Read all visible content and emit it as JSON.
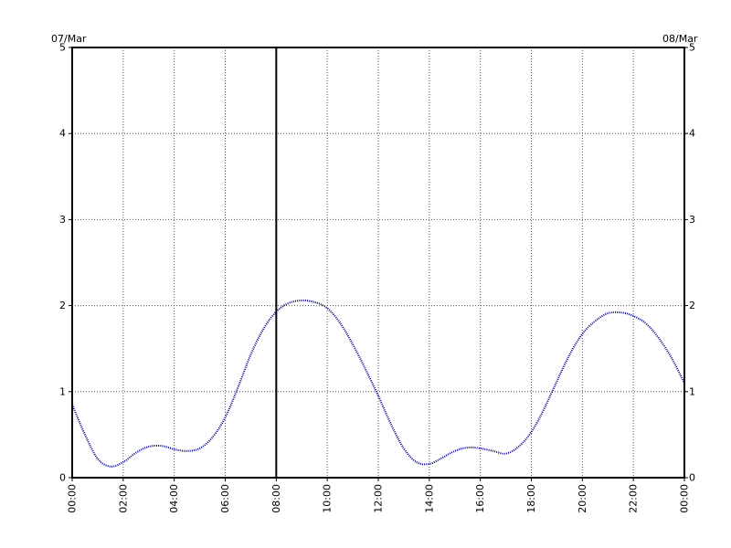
{
  "chart_data": {
    "type": "line",
    "title": "",
    "xlabel": "",
    "ylabel": "",
    "date_start_label": "07/Mar",
    "date_end_label": "08/Mar",
    "x_ticks": [
      "00:00",
      "02:00",
      "04:00",
      "06:00",
      "08:00",
      "10:00",
      "12:00",
      "14:00",
      "16:00",
      "18:00",
      "20:00",
      "22:00",
      "00:00"
    ],
    "y_ticks": [
      "0",
      "1",
      "2",
      "3",
      "4",
      "5"
    ],
    "xlim_hours": [
      0,
      24
    ],
    "ylim": [
      0,
      5
    ],
    "grid": true,
    "marker_hour": 8,
    "series_color": "#00008b",
    "marker_color": "#000000",
    "series": [
      {
        "x_hours": [
          0,
          0.5,
          1,
          1.5,
          2,
          2.5,
          3,
          3.5,
          4,
          4.5,
          5,
          5.5,
          6,
          6.5,
          7,
          7.5,
          8,
          8.5,
          9,
          9.5,
          10,
          10.5,
          11,
          11.5,
          12,
          12.5,
          13,
          13.5,
          14,
          14.5,
          15,
          15.5,
          16,
          16.5,
          17,
          17.5,
          18,
          18.5,
          19,
          19.5,
          20,
          20.5,
          21,
          21.5,
          22,
          22.5,
          23,
          23.5,
          24
        ],
        "values": [
          0.85,
          0.5,
          0.22,
          0.13,
          0.18,
          0.29,
          0.36,
          0.37,
          0.33,
          0.31,
          0.34,
          0.47,
          0.7,
          1.05,
          1.43,
          1.73,
          1.93,
          2.03,
          2.06,
          2.04,
          1.97,
          1.8,
          1.55,
          1.26,
          0.95,
          0.62,
          0.34,
          0.18,
          0.16,
          0.23,
          0.31,
          0.35,
          0.34,
          0.31,
          0.28,
          0.36,
          0.53,
          0.8,
          1.12,
          1.43,
          1.67,
          1.82,
          1.91,
          1.92,
          1.88,
          1.79,
          1.62,
          1.39,
          1.1
        ]
      }
    ]
  }
}
